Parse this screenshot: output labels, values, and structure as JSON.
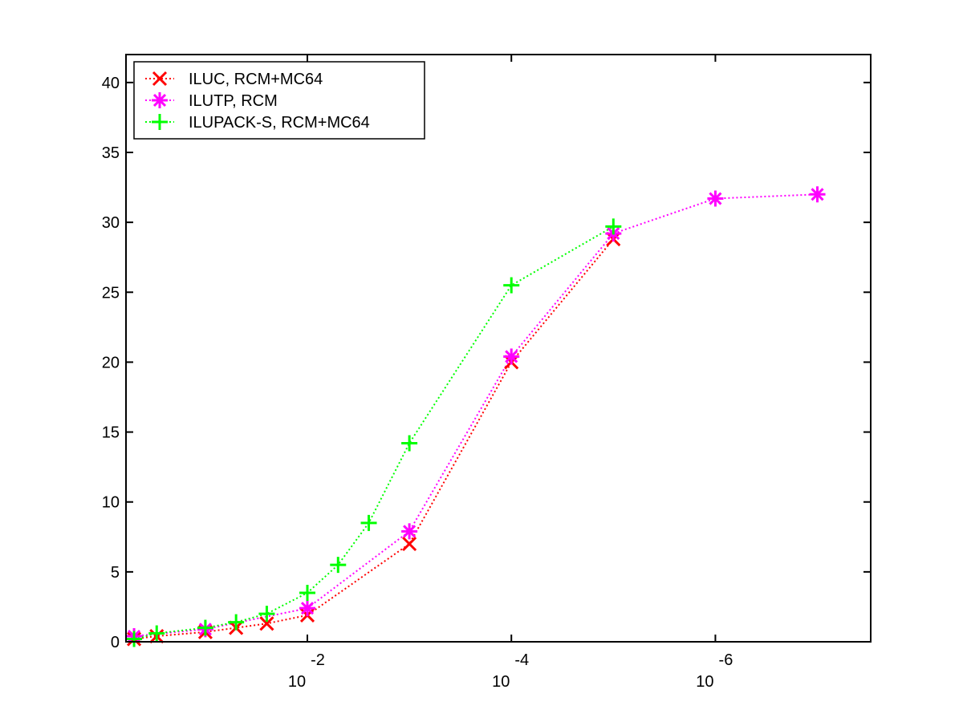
{
  "chart_data": {
    "type": "line",
    "x_scale": "log",
    "x_reversed": true,
    "xlim": [
      0.6,
      3e-08
    ],
    "ylim": [
      0,
      42
    ],
    "x_ticks": [
      {
        "value": 0.01,
        "base": "10",
        "exp": "-2"
      },
      {
        "value": 0.0001,
        "base": "10",
        "exp": "-4"
      },
      {
        "value": 1e-06,
        "base": "10",
        "exp": "-6"
      }
    ],
    "y_ticks": [
      {
        "value": 0,
        "label": "0"
      },
      {
        "value": 5,
        "label": "5"
      },
      {
        "value": 10,
        "label": "10"
      },
      {
        "value": 15,
        "label": "15"
      },
      {
        "value": 20,
        "label": "20"
      },
      {
        "value": 25,
        "label": "25"
      },
      {
        "value": 30,
        "label": "30"
      },
      {
        "value": 35,
        "label": "35"
      },
      {
        "value": 40,
        "label": "40"
      }
    ],
    "grid": false,
    "legend_position": "top-left",
    "series": [
      {
        "name": "ILUC, RCM+MC64",
        "color": "#ff0000",
        "marker": "x",
        "points": [
          {
            "x": 0.5,
            "y": 0.2
          },
          {
            "x": 0.3,
            "y": 0.4
          },
          {
            "x": 0.1,
            "y": 0.7
          },
          {
            "x": 0.05,
            "y": 1.0
          },
          {
            "x": 0.025,
            "y": 1.3
          },
          {
            "x": 0.01,
            "y": 1.9
          },
          {
            "x": 0.001,
            "y": 7.0
          },
          {
            "x": 0.0001,
            "y": 20.0
          },
          {
            "x": 1e-05,
            "y": 28.8
          }
        ]
      },
      {
        "name": "ILUTP, RCM",
        "color": "#ff00ff",
        "marker": "asterisk",
        "points": [
          {
            "x": 0.5,
            "y": 0.4
          },
          {
            "x": 0.1,
            "y": 0.9
          },
          {
            "x": 0.01,
            "y": 2.4
          },
          {
            "x": 0.001,
            "y": 7.9
          },
          {
            "x": 0.0001,
            "y": 20.4
          },
          {
            "x": 1e-05,
            "y": 29.2
          },
          {
            "x": 1e-06,
            "y": 31.7
          },
          {
            "x": 1e-07,
            "y": 32.0
          }
        ]
      },
      {
        "name": "ILUPACK-S, RCM+MC64",
        "color": "#00ff00",
        "marker": "plus",
        "points": [
          {
            "x": 0.5,
            "y": 0.2
          },
          {
            "x": 0.3,
            "y": 0.6
          },
          {
            "x": 0.1,
            "y": 1.0
          },
          {
            "x": 0.05,
            "y": 1.4
          },
          {
            "x": 0.025,
            "y": 2.0
          },
          {
            "x": 0.01,
            "y": 3.5
          },
          {
            "x": 0.005,
            "y": 5.5
          },
          {
            "x": 0.0025,
            "y": 8.5
          },
          {
            "x": 0.001,
            "y": 14.2
          },
          {
            "x": 0.0001,
            "y": 25.5
          },
          {
            "x": 1e-05,
            "y": 29.7
          }
        ]
      }
    ]
  }
}
